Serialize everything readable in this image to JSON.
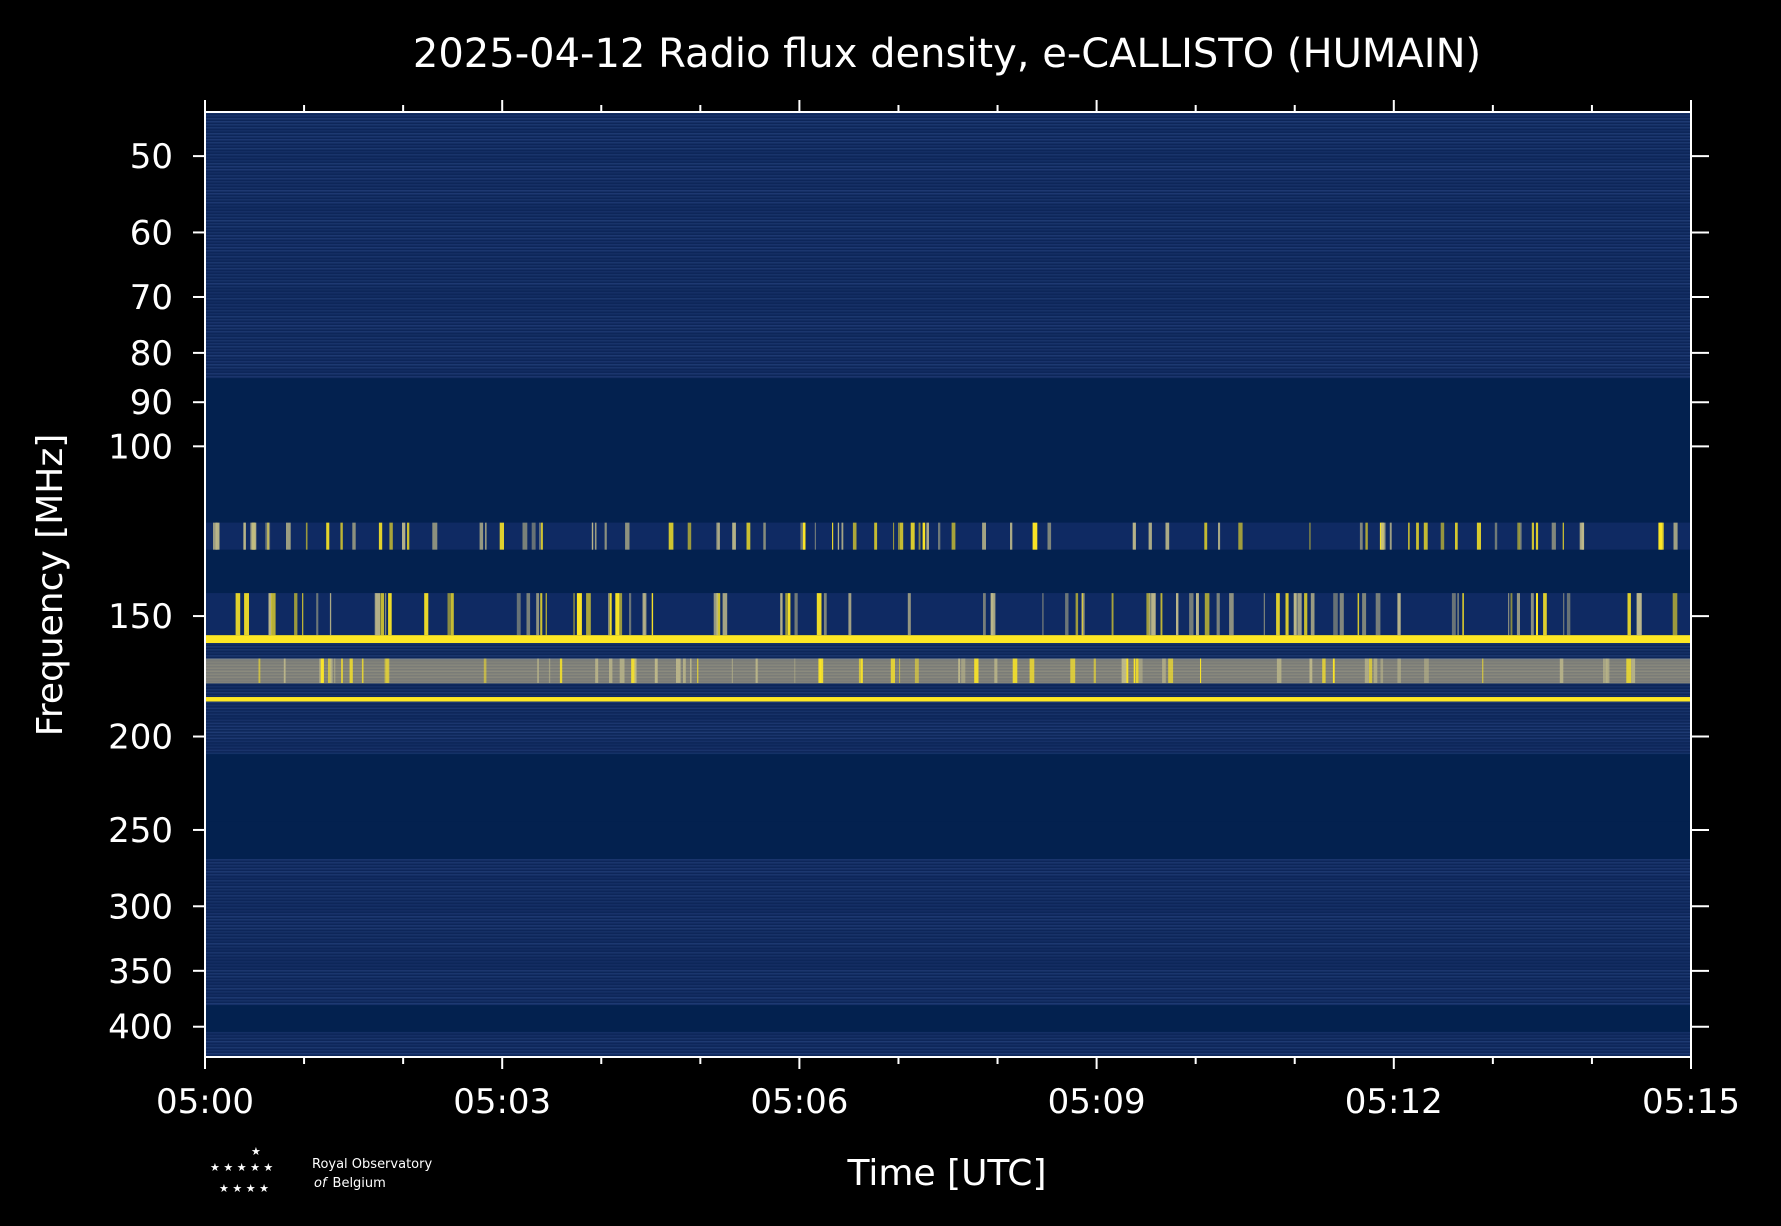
{
  "colors": {
    "background": "#000000",
    "plot_base": "#0d2659",
    "plot_dark": "#03214f",
    "noise_light": "#3a5a9a",
    "mid": "#7b7c78",
    "bright": "#fde725",
    "axis": "#ffffff"
  },
  "logo": {
    "line1": "Royal Observatory",
    "line2_a": "of",
    "line2_b": "Belgium",
    "icon": "star-cluster-icon"
  },
  "chart_data": {
    "type": "heatmap",
    "title": "2025-04-12 Radio flux density, e-CALLISTO (HUMAIN)",
    "xlabel": "Time [UTC]",
    "ylabel": "Frequency [MHz]",
    "x_range": [
      "05:00",
      "05:15"
    ],
    "x_ticks": [
      "05:00",
      "05:03",
      "05:06",
      "05:09",
      "05:12",
      "05:15"
    ],
    "y_scale": "log",
    "y_range": [
      45,
      430
    ],
    "y_ticks": [
      50,
      60,
      70,
      80,
      90,
      100,
      150,
      200,
      250,
      300,
      350,
      400
    ],
    "y_inverted": true,
    "bands": [
      {
        "from": 45,
        "to": 85,
        "level": "noise"
      },
      {
        "from": 85,
        "to": 120,
        "level": "blank"
      },
      {
        "from": 120,
        "to": 128,
        "level": "bursty"
      },
      {
        "from": 128,
        "to": 142,
        "level": "blank"
      },
      {
        "from": 142,
        "to": 157,
        "level": "bursty"
      },
      {
        "from": 157,
        "to": 160,
        "level": "intense"
      },
      {
        "from": 160,
        "to": 166,
        "level": "noise"
      },
      {
        "from": 166,
        "to": 176,
        "level": "strong"
      },
      {
        "from": 176,
        "to": 182,
        "level": "noise"
      },
      {
        "from": 182,
        "to": 184,
        "level": "intense"
      },
      {
        "from": 184,
        "to": 208,
        "level": "noise"
      },
      {
        "from": 208,
        "to": 245,
        "level": "blank"
      },
      {
        "from": 245,
        "to": 268,
        "level": "blank"
      },
      {
        "from": 268,
        "to": 380,
        "level": "noise"
      },
      {
        "from": 380,
        "to": 405,
        "level": "blank"
      },
      {
        "from": 405,
        "to": 430,
        "level": "noise"
      }
    ]
  }
}
